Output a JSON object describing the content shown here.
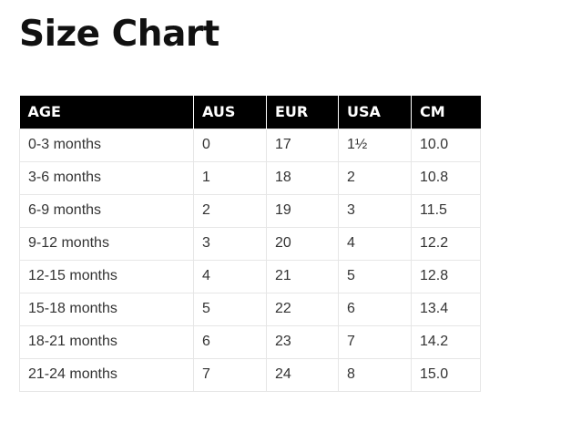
{
  "title": "Size Chart",
  "table": {
    "headers": [
      "AGE",
      "AUS",
      "EUR",
      "USA",
      "CM"
    ],
    "rows": [
      [
        "0-3 months",
        "0",
        "17",
        "1½",
        "10.0"
      ],
      [
        "3-6 months",
        "1",
        "18",
        "2",
        "10.8"
      ],
      [
        "6-9 months",
        "2",
        "19",
        "3",
        "11.5"
      ],
      [
        "9-12 months",
        "3",
        "20",
        "4",
        "12.2"
      ],
      [
        "12-15 months",
        "4",
        "21",
        "5",
        "12.8"
      ],
      [
        "15-18 months",
        "5",
        "22",
        "6",
        "13.4"
      ],
      [
        "18-21 months",
        "6",
        "23",
        "7",
        "14.2"
      ],
      [
        "21-24 months",
        "7",
        "24",
        "8",
        "15.0"
      ]
    ]
  }
}
